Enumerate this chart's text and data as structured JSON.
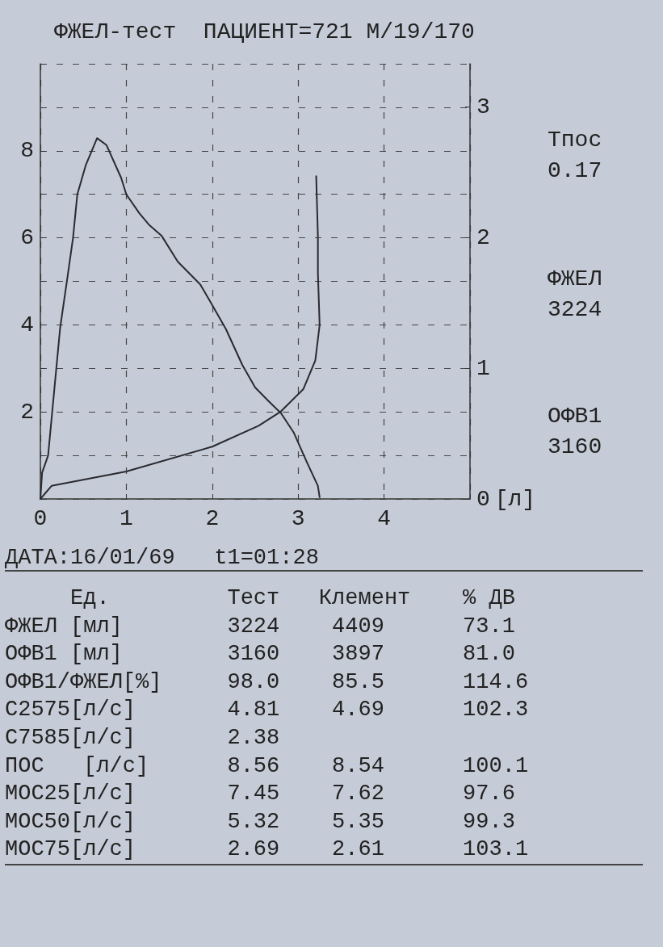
{
  "chart_data": {
    "type": "line",
    "title": "ФЖЕЛ-тест  ПАЦИЕНТ=721 М/19/170",
    "xlabel": "[л]",
    "xlim": [
      0,
      5
    ],
    "xticks": [
      0,
      1,
      2,
      3,
      4,
      {
        "value": 5,
        "label": null
      }
    ],
    "ylim": [
      0,
      10
    ],
    "yticks": [
      {
        "value": 0,
        "label": null
      },
      {
        "value": 1,
        "label": null
      },
      2,
      {
        "value": 3,
        "label": null
      },
      4,
      {
        "value": 5,
        "label": null
      },
      6,
      {
        "value": 7,
        "label": null
      },
      8,
      {
        "value": 9,
        "label": null
      },
      {
        "value": 10,
        "label": null
      }
    ],
    "y2lim": [
      0,
      3.33
    ],
    "y2ticks": [
      0,
      1,
      2,
      3
    ],
    "grid": true,
    "marker": "none",
    "line_style": "solid",
    "series": [
      {
        "color": "#2a2a30",
        "x": [
          0,
          0.02,
          0.09,
          0.23,
          0.32,
          0.38,
          0.43,
          0.53,
          0.66,
          0.77,
          0.94,
          1.0,
          1.15,
          1.26,
          1.41,
          1.6,
          1.86,
          1.97,
          2.16,
          2.35,
          2.5,
          2.65,
          2.8,
          2.95,
          3.1,
          3.23,
          3.25
        ],
        "values": [
          0,
          0.6,
          1.0,
          3.93,
          5.16,
          6.0,
          7.0,
          7.68,
          8.29,
          8.13,
          7.38,
          7.0,
          6.57,
          6.31,
          6.05,
          5.45,
          4.93,
          4.56,
          3.9,
          3.08,
          2.56,
          2.26,
          1.97,
          1.52,
          0.85,
          0.3,
          0.04
        ]
      },
      {
        "color": "#2a2a30",
        "axis": "y2",
        "x": [
          0,
          0.13,
          1.0,
          2.0,
          2.54,
          2.8,
          3.06,
          3.2,
          3.25,
          3.23,
          3.23,
          3.21
        ],
        "values": [
          0,
          0.1,
          0.21,
          0.4,
          0.56,
          0.67,
          0.84,
          1.06,
          1.33,
          1.73,
          2.01,
          2.47
        ]
      }
    ],
    "annotations": [
      "Тпос",
      "0.17",
      "ФЖЕЛ",
      "3224",
      "ОФВ1",
      "3160",
      "ДАТА:16/01/69   t1=01:28",
      "     Ед.         Тест   Клемент    % ДВ",
      "ФЖЕЛ [мл]        3224    4409      73.1",
      "ОФВ1 [мл]        3160    3897      81.0",
      "ОФВ1/ФЖЕЛ[%]     98.0    85.5      114.6",
      "С2575[л/с]       4.81    4.69      102.3",
      "С7585[л/с]       2.38",
      "ПОС   [л/с]      8.56    8.54      100.1",
      "МОС25[л/с]       7.45    7.62      97.6",
      "МОС50[л/с]       5.32    5.35      99.3",
      "МОС75[л/с]       2.69    2.61      103.1"
    ]
  }
}
